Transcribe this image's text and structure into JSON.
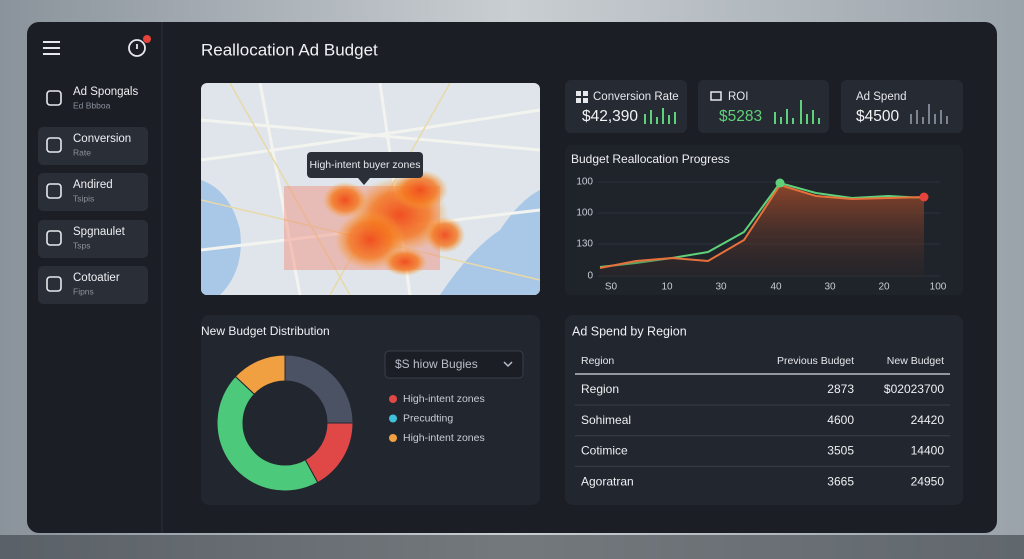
{
  "header": {
    "title": "Reallocation Ad Budget"
  },
  "sidebar": {
    "items": [
      {
        "label": "Ad Spongals",
        "sub": "Ed Bbboa"
      },
      {
        "label": "Conversion",
        "sub": "Rate"
      },
      {
        "label": "Andired",
        "sub": "Tsipis"
      },
      {
        "label": "Spgnaulet",
        "sub": "Tsps"
      },
      {
        "label": "Cotoatier",
        "sub": "Fipns"
      }
    ]
  },
  "map": {
    "tooltip": "High-intent buyer zones"
  },
  "kpis": [
    {
      "label": "Conversion Rate",
      "value": "$42,390"
    },
    {
      "label": "ROI",
      "value": "$5283"
    },
    {
      "label": "Ad Spend",
      "value": "$4500"
    }
  ],
  "progress_chart": {
    "title": "Budget Reallocation Progress",
    "y_labels": [
      "100",
      "100",
      "130",
      "0"
    ],
    "x_labels": [
      "S0",
      "10",
      "30",
      "40",
      "30",
      "20",
      "100"
    ],
    "ylim": [
      0,
      100
    ],
    "series": [
      {
        "color": "#5fd17a",
        "values": [
          10,
          14,
          19,
          25,
          45,
          94,
          84,
          79,
          81,
          79
        ]
      },
      {
        "color": "#e8703a",
        "values": [
          9,
          16,
          19,
          16,
          37,
          92,
          81,
          78,
          79,
          80
        ]
      }
    ]
  },
  "distribution": {
    "title": "New Budget Distribution",
    "dropdown": "$S hiow Bugies",
    "segments": [
      {
        "color": "#4a5264",
        "value": 25
      },
      {
        "color": "#e04848",
        "value": 17
      },
      {
        "color": "#4cc97a",
        "value": 45
      },
      {
        "color": "#f0a040",
        "value": 13
      }
    ],
    "legend": [
      {
        "label": "High-intent zones",
        "color": "#e04848"
      },
      {
        "label": "Precudting",
        "color": "#3fc1d9"
      },
      {
        "label": "High-intent zones",
        "color": "#f0a040"
      }
    ]
  },
  "region_table": {
    "title": "Ad Spend by Region",
    "columns": [
      "Region",
      "Previous Budget",
      "New Budget"
    ],
    "rows": [
      [
        "Region",
        2873,
        "$02023700"
      ],
      [
        "Sohimeal",
        4600,
        24420
      ],
      [
        "Cotimice",
        3505,
        14400
      ],
      [
        "Agoratran",
        3665,
        24950
      ]
    ]
  }
}
